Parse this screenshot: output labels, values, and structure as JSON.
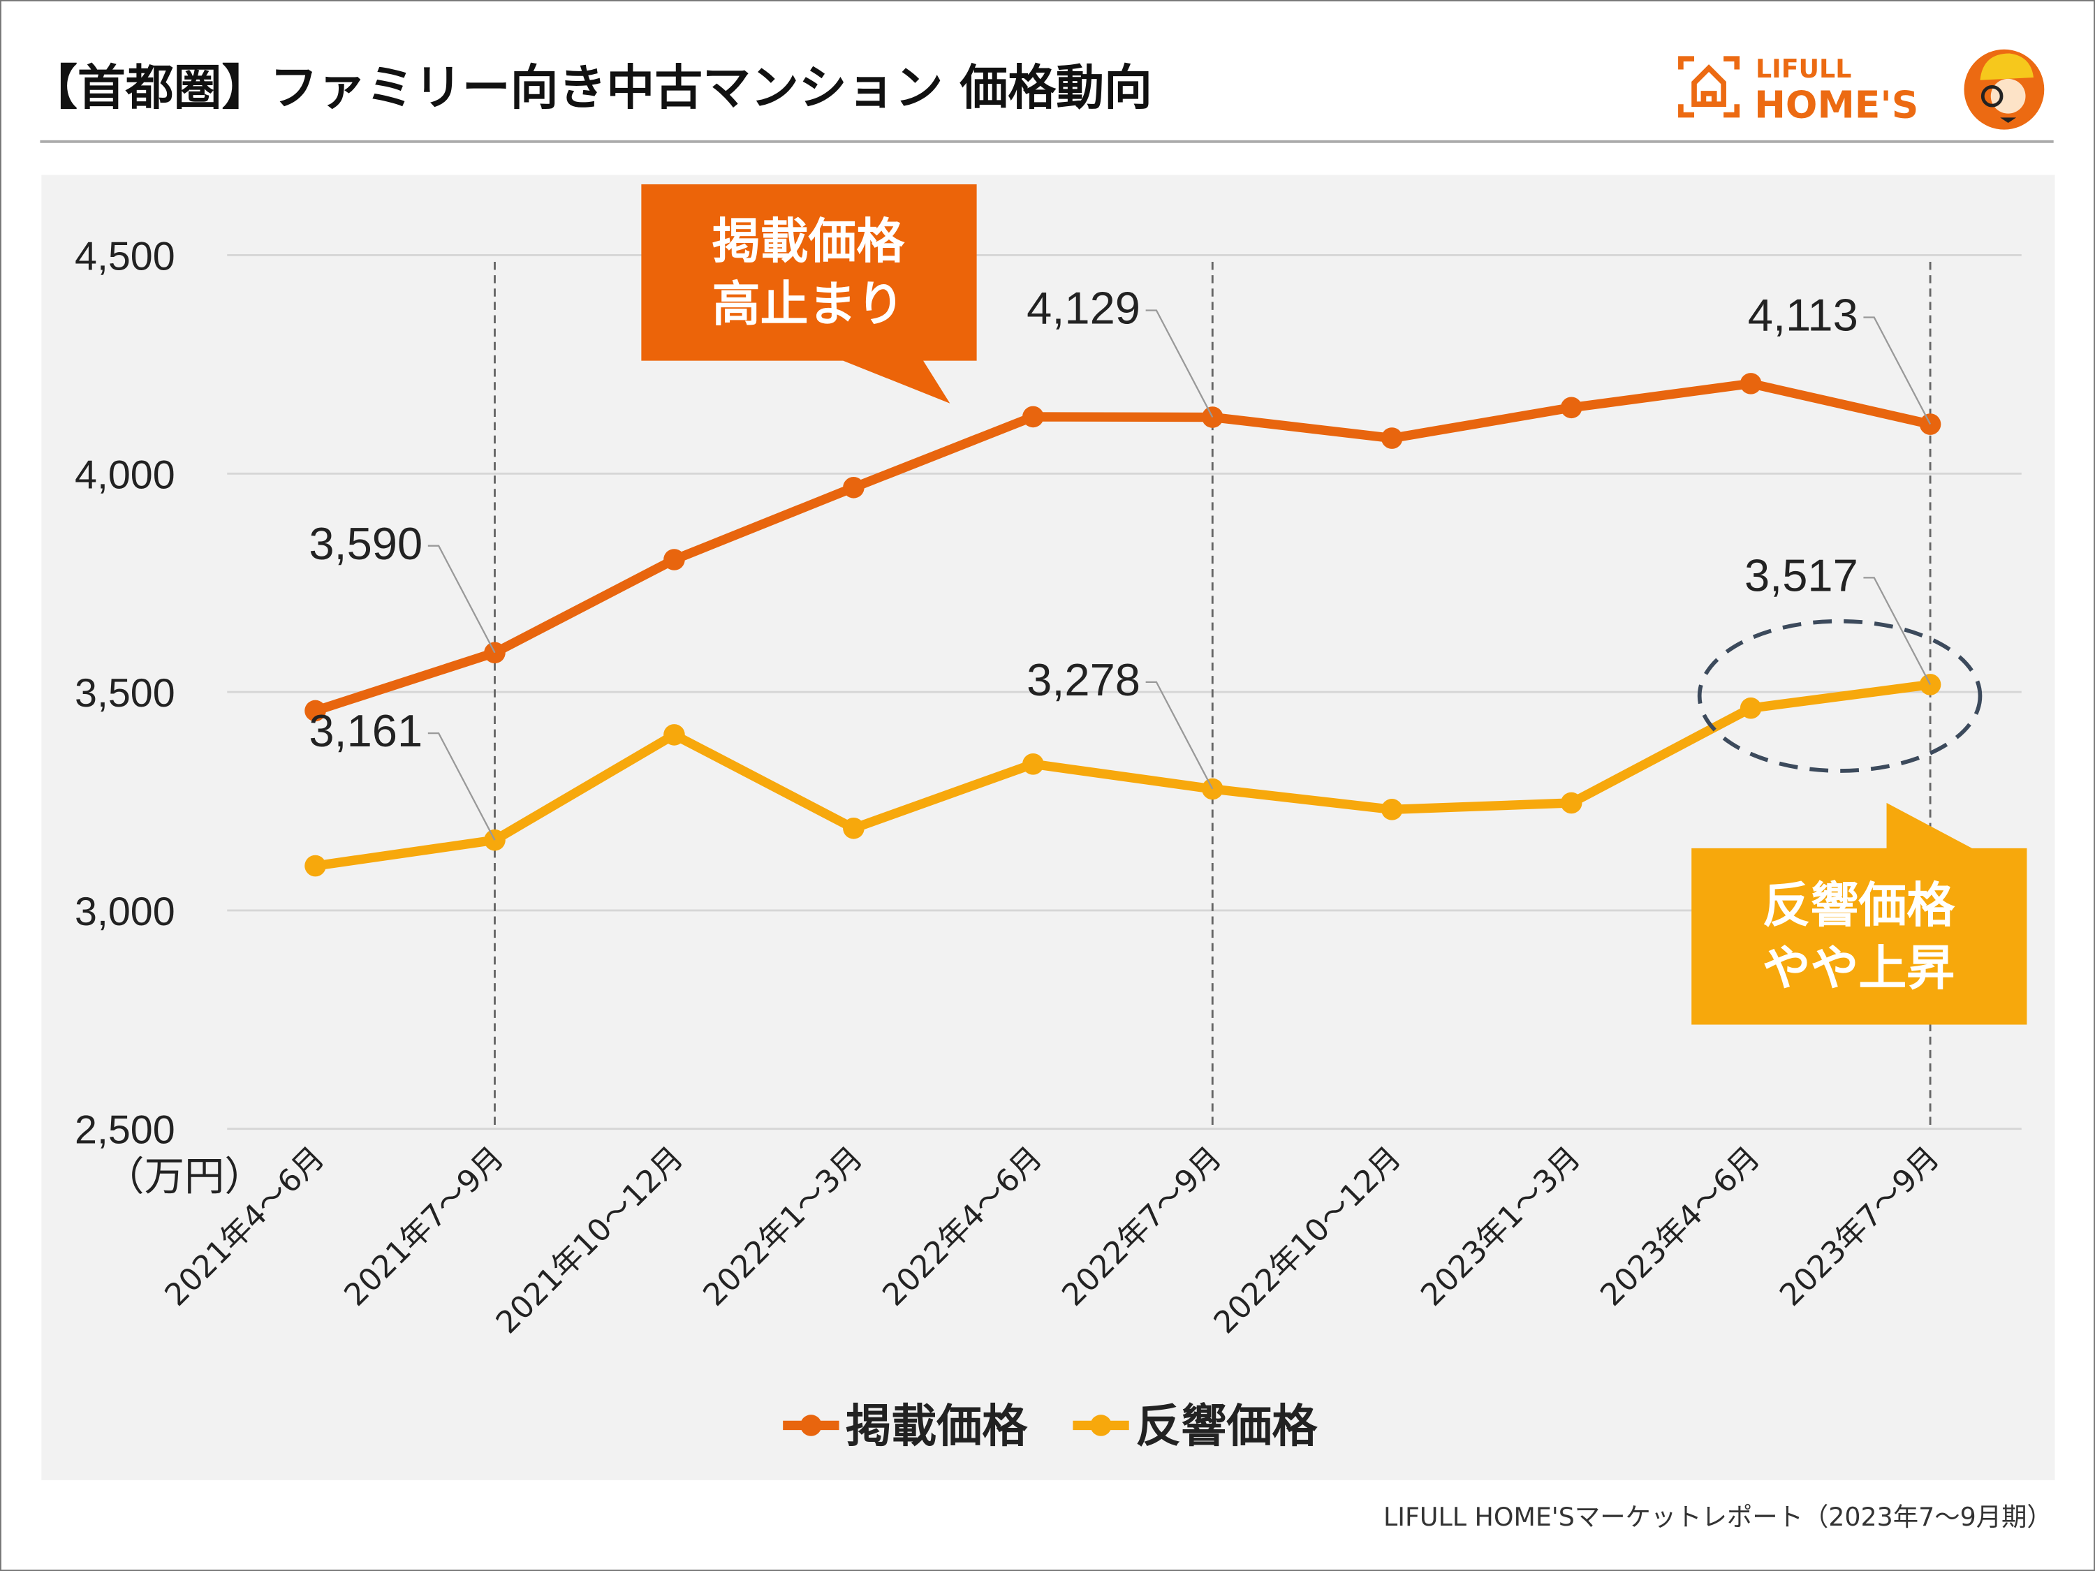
{
  "title": "【首都圏】ファミリー向き中古マンション 価格動向",
  "logo": {
    "line1": "LIFULL",
    "line2": "HOME'S"
  },
  "footer": "LIFULL HOME'Sマーケットレポート（2023年7〜9月期）",
  "chart_data": {
    "type": "line",
    "title": "【首都圏】ファミリー向き中古マンション 価格動向",
    "ylabel": "（万円）",
    "ylim": [
      2500,
      4500
    ],
    "yticks": [
      "2,500",
      "3,000",
      "3,500",
      "4,000",
      "4,500"
    ],
    "ytick_values": [
      2500,
      3000,
      3500,
      4000,
      4500
    ],
    "grid": true,
    "legend_position": "bottom",
    "categories": [
      "2021年4〜6月",
      "2021年7〜9月",
      "2021年10〜12月",
      "2022年1〜3月",
      "2022年4〜6月",
      "2022年7〜9月",
      "2022年10〜12月",
      "2023年1〜3月",
      "2023年4〜6月",
      "2023年7〜9月"
    ],
    "series": [
      {
        "name": "掲載価格",
        "color": "#e8650e",
        "values": [
          3457,
          3590,
          3803,
          3968,
          4130,
          4129,
          4081,
          4151,
          4206,
          4113
        ],
        "labels": [
          {
            "index": 1,
            "text": "3,590"
          },
          {
            "index": 5,
            "text": "4,129"
          },
          {
            "index": 9,
            "text": "4,113"
          }
        ]
      },
      {
        "name": "反響価格",
        "color": "#f7a80c",
        "values": [
          3102,
          3161,
          3402,
          3188,
          3335,
          3278,
          3231,
          3246,
          3463,
          3517
        ],
        "labels": [
          {
            "index": 1,
            "text": "3,161"
          },
          {
            "index": 5,
            "text": "3,278"
          },
          {
            "index": 9,
            "text": "3,517"
          }
        ]
      }
    ],
    "annotations": [
      {
        "text_line1": "掲載価格",
        "text_line2": "高止まり",
        "color": "#ec6409"
      },
      {
        "text_line1": "反響価格",
        "text_line2": "やや上昇",
        "color": "#f7a80c"
      }
    ]
  }
}
